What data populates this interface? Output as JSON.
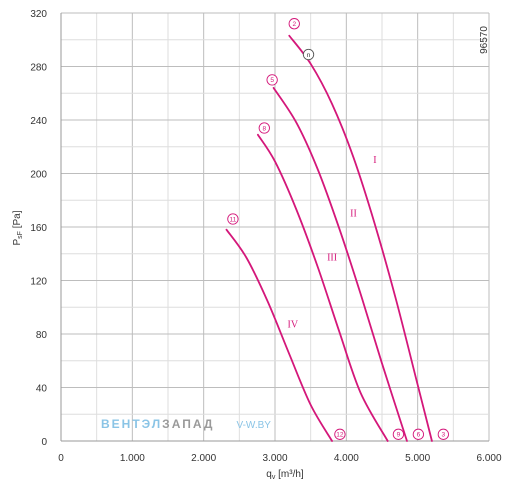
{
  "chart_data": {
    "type": "line",
    "xlabel": "q",
    "xlabel_sub": "v",
    "xlabel_unit": "[m³/h]",
    "ylabel": "P",
    "ylabel_sub": "sF",
    "ylabel_unit": "[Pa]",
    "xlim": [
      0,
      6000
    ],
    "ylim": [
      0,
      320
    ],
    "xticks": [
      0,
      1000,
      2000,
      3000,
      4000,
      5000,
      6000
    ],
    "xtick_labels": [
      "0",
      "1.000",
      "2.000",
      "3.000",
      "4.000",
      "5.000",
      "6.000"
    ],
    "yticks": [
      0,
      40,
      80,
      120,
      160,
      200,
      240,
      280,
      320
    ],
    "ytick_labels": [
      "0",
      "40",
      "80",
      "120",
      "160",
      "200",
      "240",
      "280",
      "320"
    ],
    "grid": true,
    "code": "96570",
    "series": [
      {
        "name": "I",
        "color": "#d4177a",
        "points": [
          [
            3200,
            303
          ],
          [
            3500,
            282
          ],
          [
            3800,
            252
          ],
          [
            4100,
            212
          ],
          [
            4400,
            162
          ],
          [
            4700,
            105
          ],
          [
            5000,
            42
          ],
          [
            5200,
            0
          ]
        ],
        "label_at": [
          4400,
          208
        ],
        "start_marker": "2",
        "start_marker_at": [
          3270,
          312
        ],
        "end_marker": "3",
        "end_marker_at": [
          5360,
          5
        ],
        "mid_marker": "n",
        "mid_marker_at": [
          3470,
          289
        ]
      },
      {
        "name": "II",
        "color": "#d4177a",
        "points": [
          [
            2980,
            264
          ],
          [
            3300,
            238
          ],
          [
            3600,
            203
          ],
          [
            3900,
            159
          ],
          [
            4200,
            110
          ],
          [
            4500,
            58
          ],
          [
            4850,
            0
          ]
        ],
        "label_at": [
          4100,
          168
        ],
        "start_marker": "5",
        "start_marker_at": [
          2960,
          270
        ],
        "end_marker": "6",
        "end_marker_at": [
          5010,
          5
        ]
      },
      {
        "name": "III",
        "color": "#d4177a",
        "points": [
          [
            2760,
            229
          ],
          [
            3000,
            209
          ],
          [
            3300,
            173
          ],
          [
            3600,
            130
          ],
          [
            3900,
            82
          ],
          [
            4200,
            36
          ],
          [
            4580,
            0
          ]
        ],
        "label_at": [
          3800,
          135
        ],
        "start_marker": "8",
        "start_marker_at": [
          2850,
          234
        ],
        "end_marker": "9",
        "end_marker_at": [
          4730,
          5
        ]
      },
      {
        "name": "IV",
        "color": "#d4177a",
        "points": [
          [
            2320,
            158
          ],
          [
            2600,
            137
          ],
          [
            2900,
            104
          ],
          [
            3200,
            65
          ],
          [
            3500,
            27
          ],
          [
            3800,
            0
          ]
        ],
        "label_at": [
          3250,
          85
        ],
        "start_marker": "11",
        "start_marker_at": [
          2410,
          166
        ],
        "end_marker": "12",
        "end_marker_at": [
          3910,
          5
        ]
      }
    ]
  },
  "watermark": {
    "brand_a": "ВЕНТЭЛ",
    "brand_b": "ЗАПАД",
    "url": "V-W.BY",
    "color_a": "#8ac4e6",
    "color_b": "#9a9a9a",
    "color_url": "#8ac4e6"
  }
}
